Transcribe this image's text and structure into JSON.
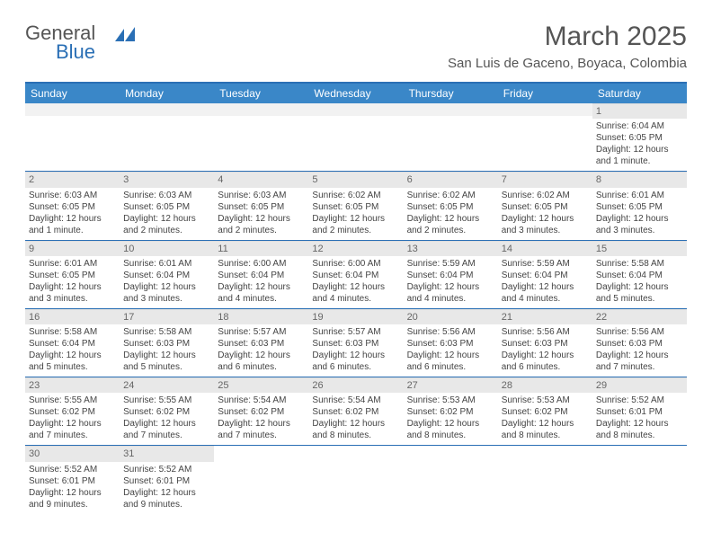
{
  "logo": {
    "text1": "General",
    "text2": "Blue"
  },
  "title": "March 2025",
  "location": "San Luis de Gaceno, Boyaca, Colombia",
  "colors": {
    "header_bg": "#3a87c8",
    "border": "#2a6fb5",
    "daynum_bg": "#e8e8e8",
    "text": "#444444"
  },
  "dayNames": [
    "Sunday",
    "Monday",
    "Tuesday",
    "Wednesday",
    "Thursday",
    "Friday",
    "Saturday"
  ],
  "weeks": [
    [
      {
        "empty": true
      },
      {
        "empty": true
      },
      {
        "empty": true
      },
      {
        "empty": true
      },
      {
        "empty": true
      },
      {
        "empty": true
      },
      {
        "num": "1",
        "sunrise": "6:04 AM",
        "sunset": "6:05 PM",
        "daylight": "12 hours and 1 minute."
      }
    ],
    [
      {
        "num": "2",
        "sunrise": "6:03 AM",
        "sunset": "6:05 PM",
        "daylight": "12 hours and 1 minute."
      },
      {
        "num": "3",
        "sunrise": "6:03 AM",
        "sunset": "6:05 PM",
        "daylight": "12 hours and 2 minutes."
      },
      {
        "num": "4",
        "sunrise": "6:03 AM",
        "sunset": "6:05 PM",
        "daylight": "12 hours and 2 minutes."
      },
      {
        "num": "5",
        "sunrise": "6:02 AM",
        "sunset": "6:05 PM",
        "daylight": "12 hours and 2 minutes."
      },
      {
        "num": "6",
        "sunrise": "6:02 AM",
        "sunset": "6:05 PM",
        "daylight": "12 hours and 2 minutes."
      },
      {
        "num": "7",
        "sunrise": "6:02 AM",
        "sunset": "6:05 PM",
        "daylight": "12 hours and 3 minutes."
      },
      {
        "num": "8",
        "sunrise": "6:01 AM",
        "sunset": "6:05 PM",
        "daylight": "12 hours and 3 minutes."
      }
    ],
    [
      {
        "num": "9",
        "sunrise": "6:01 AM",
        "sunset": "6:05 PM",
        "daylight": "12 hours and 3 minutes."
      },
      {
        "num": "10",
        "sunrise": "6:01 AM",
        "sunset": "6:04 PM",
        "daylight": "12 hours and 3 minutes."
      },
      {
        "num": "11",
        "sunrise": "6:00 AM",
        "sunset": "6:04 PM",
        "daylight": "12 hours and 4 minutes."
      },
      {
        "num": "12",
        "sunrise": "6:00 AM",
        "sunset": "6:04 PM",
        "daylight": "12 hours and 4 minutes."
      },
      {
        "num": "13",
        "sunrise": "5:59 AM",
        "sunset": "6:04 PM",
        "daylight": "12 hours and 4 minutes."
      },
      {
        "num": "14",
        "sunrise": "5:59 AM",
        "sunset": "6:04 PM",
        "daylight": "12 hours and 4 minutes."
      },
      {
        "num": "15",
        "sunrise": "5:58 AM",
        "sunset": "6:04 PM",
        "daylight": "12 hours and 5 minutes."
      }
    ],
    [
      {
        "num": "16",
        "sunrise": "5:58 AM",
        "sunset": "6:04 PM",
        "daylight": "12 hours and 5 minutes."
      },
      {
        "num": "17",
        "sunrise": "5:58 AM",
        "sunset": "6:03 PM",
        "daylight": "12 hours and 5 minutes."
      },
      {
        "num": "18",
        "sunrise": "5:57 AM",
        "sunset": "6:03 PM",
        "daylight": "12 hours and 6 minutes."
      },
      {
        "num": "19",
        "sunrise": "5:57 AM",
        "sunset": "6:03 PM",
        "daylight": "12 hours and 6 minutes."
      },
      {
        "num": "20",
        "sunrise": "5:56 AM",
        "sunset": "6:03 PM",
        "daylight": "12 hours and 6 minutes."
      },
      {
        "num": "21",
        "sunrise": "5:56 AM",
        "sunset": "6:03 PM",
        "daylight": "12 hours and 6 minutes."
      },
      {
        "num": "22",
        "sunrise": "5:56 AM",
        "sunset": "6:03 PM",
        "daylight": "12 hours and 7 minutes."
      }
    ],
    [
      {
        "num": "23",
        "sunrise": "5:55 AM",
        "sunset": "6:02 PM",
        "daylight": "12 hours and 7 minutes."
      },
      {
        "num": "24",
        "sunrise": "5:55 AM",
        "sunset": "6:02 PM",
        "daylight": "12 hours and 7 minutes."
      },
      {
        "num": "25",
        "sunrise": "5:54 AM",
        "sunset": "6:02 PM",
        "daylight": "12 hours and 7 minutes."
      },
      {
        "num": "26",
        "sunrise": "5:54 AM",
        "sunset": "6:02 PM",
        "daylight": "12 hours and 8 minutes."
      },
      {
        "num": "27",
        "sunrise": "5:53 AM",
        "sunset": "6:02 PM",
        "daylight": "12 hours and 8 minutes."
      },
      {
        "num": "28",
        "sunrise": "5:53 AM",
        "sunset": "6:02 PM",
        "daylight": "12 hours and 8 minutes."
      },
      {
        "num": "29",
        "sunrise": "5:52 AM",
        "sunset": "6:01 PM",
        "daylight": "12 hours and 8 minutes."
      }
    ],
    [
      {
        "num": "30",
        "sunrise": "5:52 AM",
        "sunset": "6:01 PM",
        "daylight": "12 hours and 9 minutes."
      },
      {
        "num": "31",
        "sunrise": "5:52 AM",
        "sunset": "6:01 PM",
        "daylight": "12 hours and 9 minutes."
      },
      {
        "empty": true
      },
      {
        "empty": true
      },
      {
        "empty": true
      },
      {
        "empty": true
      },
      {
        "empty": true
      }
    ]
  ],
  "labels": {
    "sunrise": "Sunrise:",
    "sunset": "Sunset:",
    "daylight": "Daylight:"
  }
}
